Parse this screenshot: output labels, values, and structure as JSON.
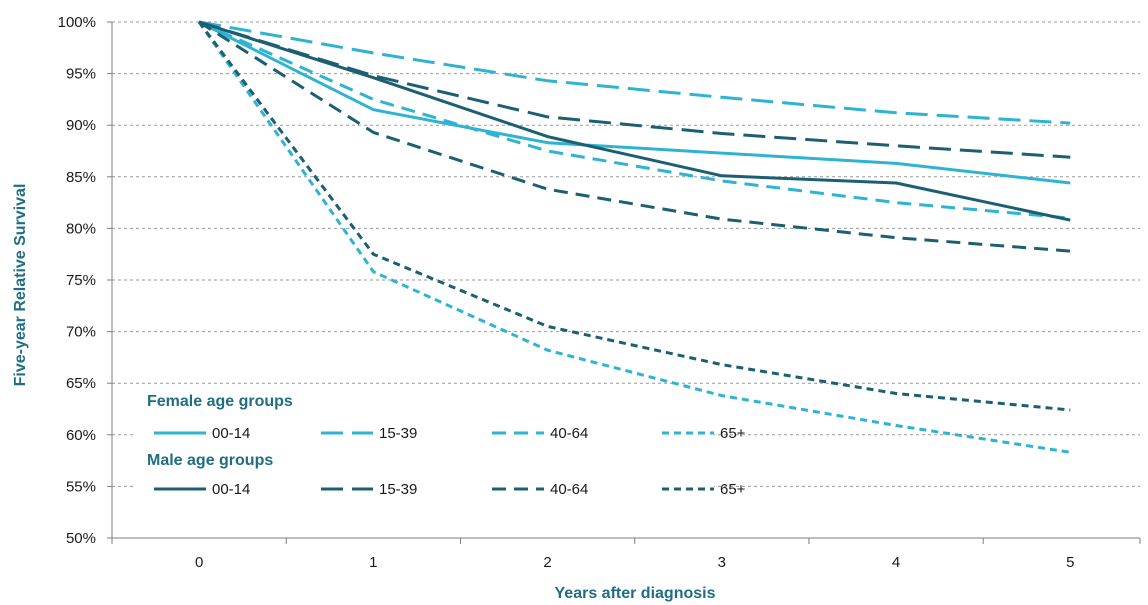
{
  "chart_data": {
    "type": "line",
    "xlabel": "Years after diagnosis",
    "ylabel": "Five-year Relative Survival",
    "x": [
      0,
      1,
      2,
      3,
      4,
      5
    ],
    "xlim": [
      -0.5,
      5.4
    ],
    "ylim": [
      50,
      100
    ],
    "y_ticks": [
      50,
      55,
      60,
      65,
      70,
      75,
      80,
      85,
      90,
      95,
      100
    ],
    "y_tick_labels": [
      "50%",
      "55%",
      "60%",
      "65%",
      "70%",
      "75%",
      "80%",
      "85%",
      "90%",
      "95%",
      "100%"
    ],
    "x_tick_labels": [
      "0",
      "1",
      "2",
      "3",
      "4",
      "5"
    ],
    "grid": "horizontal dashed",
    "legend_groups": [
      {
        "heading": "Female age groups",
        "series": [
          0,
          1,
          2,
          3
        ]
      },
      {
        "heading": "Male age groups",
        "series": [
          4,
          5,
          6,
          7
        ]
      }
    ],
    "series": [
      {
        "name": "00-14",
        "group": "Female age groups",
        "color": "#2eb3d2",
        "dash": "solid",
        "values": [
          100,
          91.5,
          88.3,
          87.3,
          86.3,
          84.4
        ]
      },
      {
        "name": "15-39",
        "group": "Female age groups",
        "color": "#2eb3d2",
        "dash": "long-dash",
        "values": [
          100,
          97.0,
          94.3,
          92.7,
          91.2,
          90.2
        ]
      },
      {
        "name": "40-64",
        "group": "Female age groups",
        "color": "#2eb3d2",
        "dash": "dash",
        "values": [
          100,
          92.5,
          87.5,
          84.6,
          82.5,
          81.0
        ]
      },
      {
        "name": "65+",
        "group": "Female age groups",
        "color": "#2eb3d2",
        "dash": "short-dash",
        "values": [
          100,
          75.8,
          68.2,
          63.8,
          60.9,
          58.3
        ]
      },
      {
        "name": "00-14",
        "group": "Male age groups",
        "color": "#1c5f72",
        "dash": "solid",
        "values": [
          100,
          94.6,
          88.9,
          85.1,
          84.4,
          80.8
        ]
      },
      {
        "name": "15-39",
        "group": "Male age groups",
        "color": "#1c5f72",
        "dash": "long-dash",
        "values": [
          100,
          94.8,
          90.8,
          89.2,
          88.0,
          86.9
        ]
      },
      {
        "name": "40-64",
        "group": "Male age groups",
        "color": "#1c5f72",
        "dash": "dash",
        "values": [
          100,
          89.3,
          83.8,
          80.9,
          79.1,
          77.8
        ]
      },
      {
        "name": "65+",
        "group": "Male age groups",
        "color": "#1c5f72",
        "dash": "short-dash",
        "values": [
          100,
          77.5,
          70.5,
          66.8,
          64.0,
          62.4
        ]
      }
    ]
  }
}
